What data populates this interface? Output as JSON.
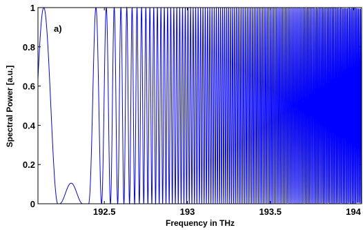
{
  "chart_data": {
    "type": "line",
    "title": "",
    "panel_label": "a)",
    "xlabel": "Frequency in THz",
    "ylabel": "Spectral Power [a.u.]",
    "xlim": [
      192.1,
      194.05
    ],
    "ylim": [
      0,
      1
    ],
    "x_ticks": [
      192.5,
      193,
      193.5,
      194
    ],
    "x_tick_labels": [
      "192.5",
      "193",
      "193.5",
      "194"
    ],
    "y_ticks": [
      0,
      0.2,
      0.4,
      0.6,
      0.8,
      1
    ],
    "y_tick_labels": [
      "0",
      "0.2",
      "0.4",
      "0.6",
      "0.8",
      "1"
    ],
    "grid": false,
    "legend": "none",
    "series_color": "#0000ff",
    "series": [
      {
        "sampled_points": [
          [
            192.1,
            0.45
          ],
          [
            192.12,
            0.93
          ],
          [
            192.135,
            1.0
          ],
          [
            192.16,
            0.85
          ],
          [
            192.19,
            0.45
          ],
          [
            192.22,
            0.05
          ],
          [
            192.235,
            0.0
          ],
          [
            192.26,
            0.04
          ],
          [
            192.3,
            0.105
          ],
          [
            192.34,
            0.04
          ],
          [
            192.37,
            0.0
          ],
          [
            192.4,
            0.0
          ],
          [
            192.44,
            0.4
          ],
          [
            192.47,
            1.0
          ],
          [
            192.5,
            0.35
          ],
          [
            192.525,
            0.0
          ],
          [
            192.56,
            0.55
          ],
          [
            192.58,
            1.0
          ],
          [
            192.6,
            0.5
          ],
          [
            192.625,
            0.0
          ],
          [
            192.645,
            1.0
          ],
          [
            192.67,
            0.0
          ],
          [
            192.7,
            1.0
          ],
          [
            192.725,
            0.0
          ],
          [
            192.75,
            1.0
          ],
          [
            193.0,
            1.0
          ],
          [
            193.5,
            1.0
          ],
          [
            194.0,
            1.0
          ]
        ],
        "envelope_min": 0,
        "envelope_max": 1,
        "fringe_peaks_count_approx": 80
      }
    ]
  }
}
